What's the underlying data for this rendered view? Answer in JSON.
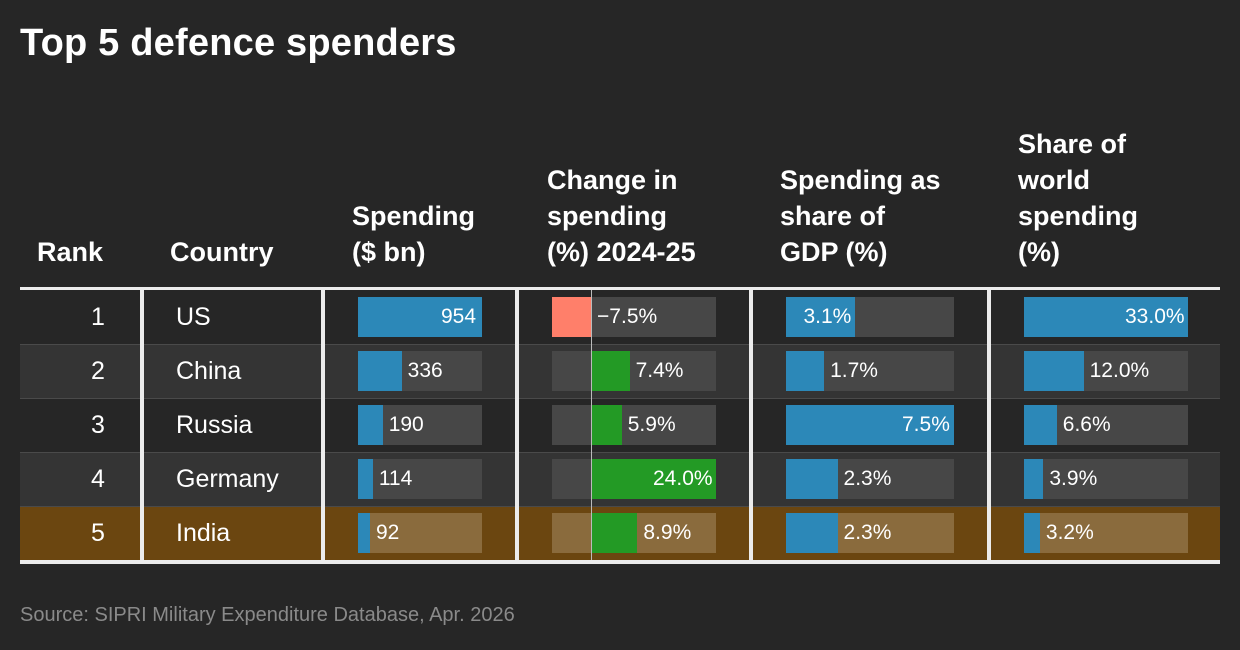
{
  "title": "Top 5 defence spenders",
  "headers": {
    "rank": "Rank",
    "country": "Country",
    "spending": "Spending\n($ bn)",
    "change": "Change in\nspending\n(%) 2024-25",
    "gdp": "Spending as\nshare of\nGDP (%)",
    "world": "Share of\nworld\nspending\n(%)"
  },
  "source": "Source: SIPRI Military Expenditure Database, Apr. 2026",
  "colors": {
    "background": "#262626",
    "blue_bar": "#2c88b8",
    "green_bar": "#239a25",
    "red_bar": "#ff7f6a",
    "highlight_row": "#6b4610"
  },
  "highlighted_country": "India",
  "chart_data": {
    "type": "table",
    "columns": [
      "Rank",
      "Country",
      "Spending ($ bn)",
      "Change in spending (%) 2024-25",
      "Spending as share of GDP (%)",
      "Share of world spending (%)"
    ],
    "rows": [
      {
        "rank": "1",
        "country": "US",
        "spending": 954,
        "spending_label": "954",
        "change": -7.5,
        "change_label": "−7.5%",
        "gdp": 3.1,
        "gdp_label": "3.1%",
        "world": 33.0,
        "world_label": "33.0%"
      },
      {
        "rank": "2",
        "country": "China",
        "spending": 336,
        "spending_label": "336",
        "change": 7.4,
        "change_label": "7.4%",
        "gdp": 1.7,
        "gdp_label": "1.7%",
        "world": 12.0,
        "world_label": "12.0%"
      },
      {
        "rank": "3",
        "country": "Russia",
        "spending": 190,
        "spending_label": "190",
        "change": 5.9,
        "change_label": "5.9%",
        "gdp": 7.5,
        "gdp_label": "7.5%",
        "world": 6.6,
        "world_label": "6.6%"
      },
      {
        "rank": "4",
        "country": "Germany",
        "spending": 114,
        "spending_label": "114",
        "change": 24.0,
        "change_label": "24.0%",
        "gdp": 2.3,
        "gdp_label": "2.3%",
        "world": 3.9,
        "world_label": "3.9%"
      },
      {
        "rank": "5",
        "country": "India",
        "spending": 92,
        "spending_label": "92",
        "change": 8.9,
        "change_label": "8.9%",
        "gdp": 2.3,
        "gdp_label": "2.3%",
        "world": 3.2,
        "world_label": "3.2%"
      }
    ],
    "scales": {
      "spending_max": 954,
      "change_min": -7.5,
      "change_max": 24.0,
      "gdp_max": 7.5,
      "world_max": 33.0
    }
  }
}
